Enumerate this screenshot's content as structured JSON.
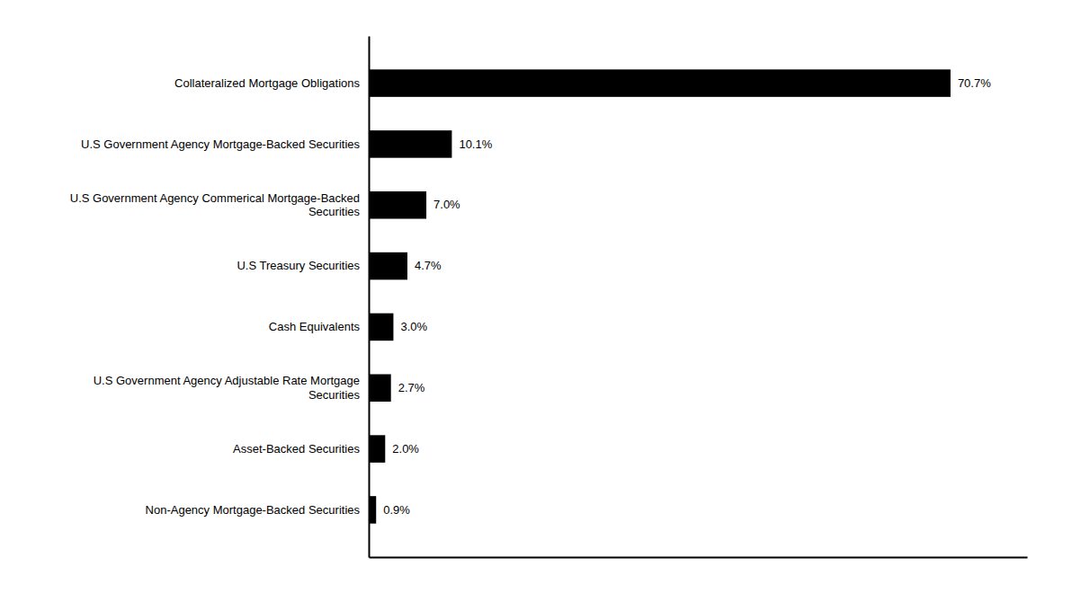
{
  "chart_data": {
    "type": "bar",
    "orientation": "horizontal",
    "categories": [
      "Non-Agency Mortgage-Backed Securities",
      "Asset-Backed Securities",
      "U.S Government Agency Adjustable Rate Mortgage\nSecurities",
      "Cash Equivalents",
      "U.S Treasury Securities",
      "U.S Government Agency Commerical Mortgage-Backed\nSecurities",
      "U.S Government Agency Mortgage-Backed Securities",
      "Collateralized Mortgage Obligations"
    ],
    "values": [
      0.9,
      2.0,
      2.7,
      3.0,
      4.7,
      7.0,
      10.1,
      70.7
    ],
    "value_labels": [
      "0.9%",
      "2.0%",
      "2.7%",
      "3.0%",
      "4.7%",
      "7.0%",
      "10.1%",
      "70.7%"
    ],
    "data_labels": true,
    "color": "#000000",
    "xlim": [
      0,
      80
    ],
    "tick_labels": "y",
    "grid": false
  }
}
